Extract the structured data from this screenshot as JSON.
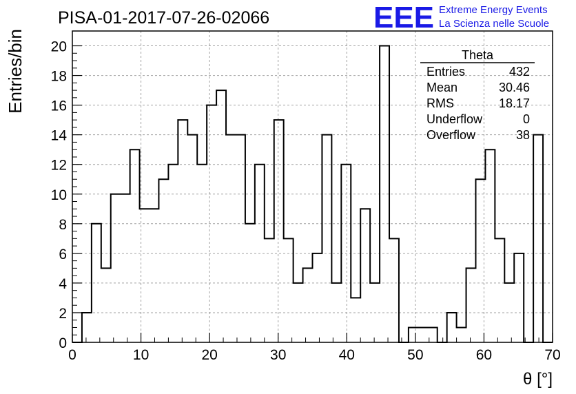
{
  "chart_data": {
    "type": "bar",
    "style": "step-histogram",
    "title": "PISA-01-2017-07-26-02066",
    "xlabel": "θ [°]",
    "ylabel": "Entries/bin",
    "xlim": [
      0,
      70
    ],
    "ylim": [
      0,
      21
    ],
    "grid": true,
    "bin_width": 1.4,
    "x_ticks": [
      0,
      10,
      20,
      30,
      40,
      50,
      60,
      70
    ],
    "y_ticks": [
      0,
      2,
      4,
      6,
      8,
      10,
      12,
      14,
      16,
      18,
      20
    ],
    "values": [
      0,
      2,
      8,
      5,
      10,
      10,
      13,
      9,
      9,
      11,
      12,
      15,
      14,
      12,
      16,
      17,
      14,
      14,
      8,
      12,
      7,
      15,
      7,
      4,
      5,
      6,
      14,
      4,
      12,
      3,
      9,
      4,
      20,
      7,
      0,
      1,
      1,
      1,
      0,
      2,
      1,
      5,
      11,
      13,
      7,
      4,
      6,
      0,
      14,
      0
    ]
  },
  "stats_box": {
    "title": "Theta",
    "rows": [
      {
        "label": "Entries",
        "value": "432"
      },
      {
        "label": "Mean",
        "value": "30.46"
      },
      {
        "label": "RMS",
        "value": "18.17"
      },
      {
        "label": "Underflow",
        "value": "0"
      },
      {
        "label": "Overflow",
        "value": "38"
      }
    ]
  },
  "logo": {
    "mark": "EEE",
    "line1": "Extreme Energy Events",
    "line2": "La Scienza nelle Scuole",
    "color": "#1a1ae6"
  },
  "colors": {
    "line": "#000000",
    "grid": "#a0a0a0"
  }
}
